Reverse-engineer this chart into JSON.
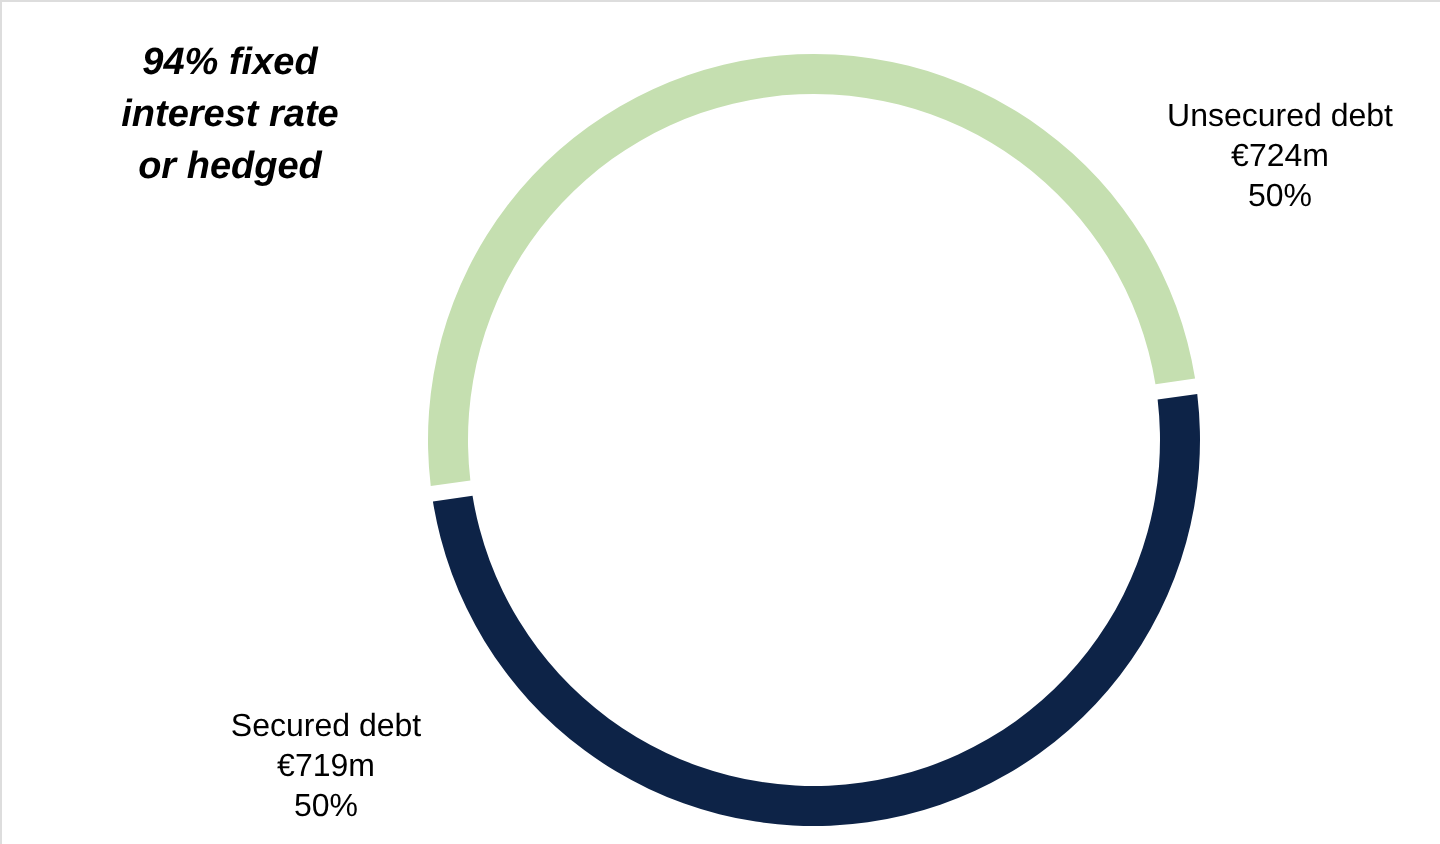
{
  "chart_data": {
    "type": "donut",
    "categories": [
      "Unsecured debt",
      "Secured debt"
    ],
    "values": [
      50,
      50
    ],
    "colors": [
      "#c5dfb0",
      "#0d2347"
    ],
    "value_labels": [
      "€724m\n50%",
      "€719m\n50%"
    ],
    "annotations": [
      "94% fixed\ninterest rate\nor hedged"
    ]
  }
}
